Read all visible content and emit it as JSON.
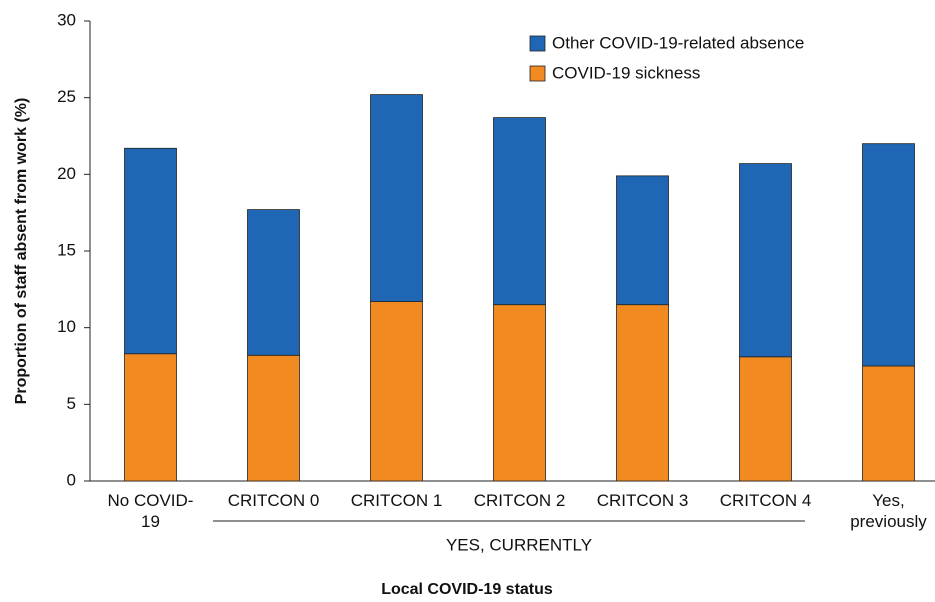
{
  "chart_data": {
    "type": "stacked-bar",
    "x_label": "Local COVID-19 status",
    "y_label": "Proportion of staff absent from work (%)",
    "categories": [
      "No COVID-19",
      "CRITCON 0",
      "CRITCON 1",
      "CRITCON 2",
      "CRITCON 3",
      "CRITCON 4",
      "Yes, previously"
    ],
    "group_label": "YES, CURRENTLY",
    "series": [
      {
        "name": "COVID-19 sickness",
        "color": "#f28a22",
        "values": [
          8.3,
          8.2,
          11.7,
          11.5,
          11.5,
          8.1,
          7.5
        ]
      },
      {
        "name": "Other COVID-19-related absence",
        "color": "#1f67b5",
        "values": [
          13.4,
          9.5,
          13.5,
          12.2,
          8.4,
          12.6,
          14.5
        ]
      }
    ],
    "ylim": [
      0,
      30
    ],
    "yticks": [
      0,
      5,
      10,
      15,
      20,
      25,
      30
    ],
    "grid": false
  }
}
